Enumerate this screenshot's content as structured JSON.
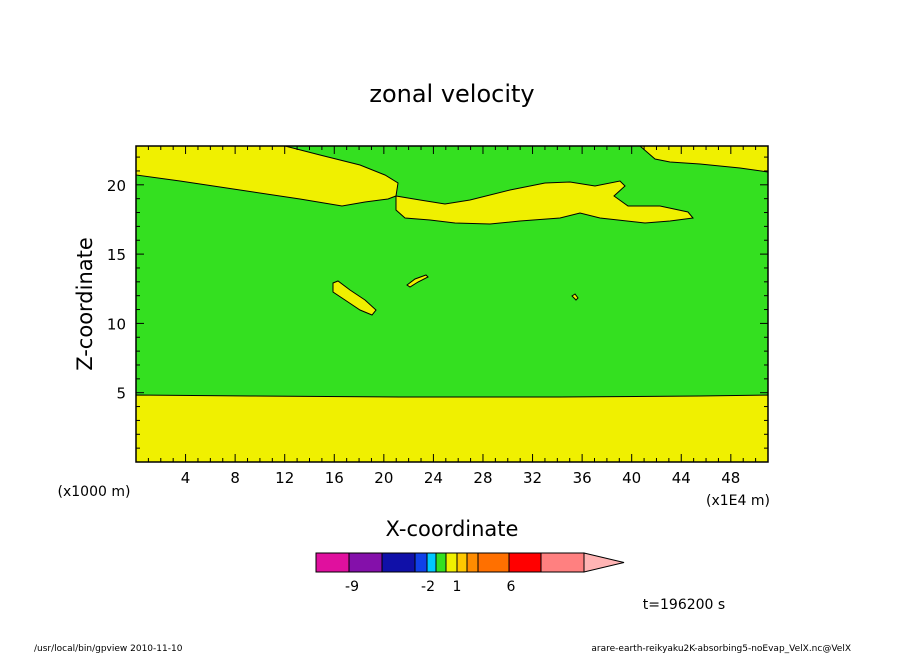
{
  "chart_data": {
    "type": "heatmap",
    "title": "zonal velocity",
    "xlabel": "X-coordinate",
    "ylabel": "Z-coordinate",
    "x_unit_label": "(x1E4 m)",
    "y_unit_label": "(x1000 m)",
    "xlim": [
      0,
      51
    ],
    "ylim": [
      0,
      22.8
    ],
    "x_ticks": [
      4,
      8,
      12,
      16,
      20,
      24,
      28,
      32,
      36,
      40,
      44,
      48
    ],
    "y_ticks": [
      5,
      10,
      15,
      20
    ],
    "grid": false,
    "colorbar": {
      "tick_labels": [
        "-9",
        "-2",
        "1",
        "6"
      ],
      "colors": [
        "#e0109e",
        "#8410aa",
        "#1010a8",
        "#1040e8",
        "#00c8ff",
        "#34e020",
        "#f0f000",
        "#ffc800",
        "#ff8c00",
        "#ff7000",
        "#ff0000",
        "#ff8080",
        "#ffb4b4"
      ]
    },
    "regions": [
      {
        "level": "yellow",
        "color": "#f0f000",
        "description_of_value_range": "lower layer",
        "z_range": [
          0,
          4.9
        ]
      },
      {
        "level": "green",
        "color": "#34e020",
        "z_range": [
          4.9,
          22.8
        ]
      }
    ],
    "time_label": "t=196200 s"
  },
  "footer": {
    "left": "/usr/local/bin/gpview  2010-11-10",
    "right": "arare-earth-reikyaku2K-absorbing5-noEvap_VelX.nc@VelX"
  }
}
